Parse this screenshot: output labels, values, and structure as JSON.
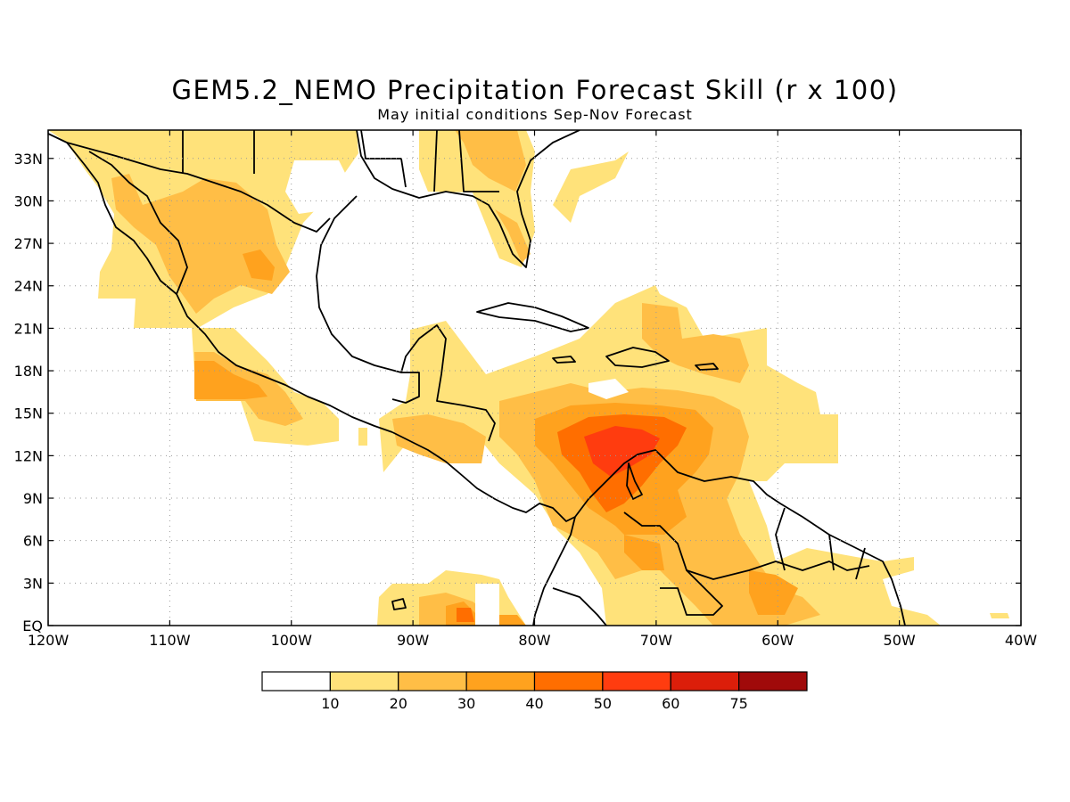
{
  "title": "GEM5.2_NEMO Precipitation Forecast Skill (r x 100)",
  "subtitle": "May initial conditions  Sep-Nov Forecast",
  "map": {
    "lon_range": [
      -120,
      -40
    ],
    "lat_range": [
      0,
      35
    ],
    "lat_ticks": [
      {
        "value": 33,
        "label": "33N"
      },
      {
        "value": 30,
        "label": "30N"
      },
      {
        "value": 27,
        "label": "27N"
      },
      {
        "value": 24,
        "label": "24N"
      },
      {
        "value": 21,
        "label": "21N"
      },
      {
        "value": 18,
        "label": "18N"
      },
      {
        "value": 15,
        "label": "15N"
      },
      {
        "value": 12,
        "label": "12N"
      },
      {
        "value": 9,
        "label": "9N"
      },
      {
        "value": 6,
        "label": "6N"
      },
      {
        "value": 3,
        "label": "3N"
      },
      {
        "value": 0,
        "label": "EQ"
      }
    ],
    "lon_ticks": [
      {
        "value": -120,
        "label": "120W"
      },
      {
        "value": -110,
        "label": "110W"
      },
      {
        "value": -100,
        "label": "100W"
      },
      {
        "value": -90,
        "label": "90W"
      },
      {
        "value": -80,
        "label": "80W"
      },
      {
        "value": -70,
        "label": "70W"
      },
      {
        "value": -60,
        "label": "60W"
      },
      {
        "value": -50,
        "label": "50W"
      },
      {
        "value": -40,
        "label": "40W"
      }
    ],
    "grid": true
  },
  "colorbar": {
    "boundaries": [
      "10",
      "20",
      "30",
      "40",
      "50",
      "60",
      "75"
    ],
    "colors": [
      "#ffffff",
      "#ffe27a",
      "#ffbe46",
      "#ffa21e",
      "#ff6e00",
      "#ff3c0f",
      "#dc1e0a",
      "#a00a0a"
    ]
  }
}
